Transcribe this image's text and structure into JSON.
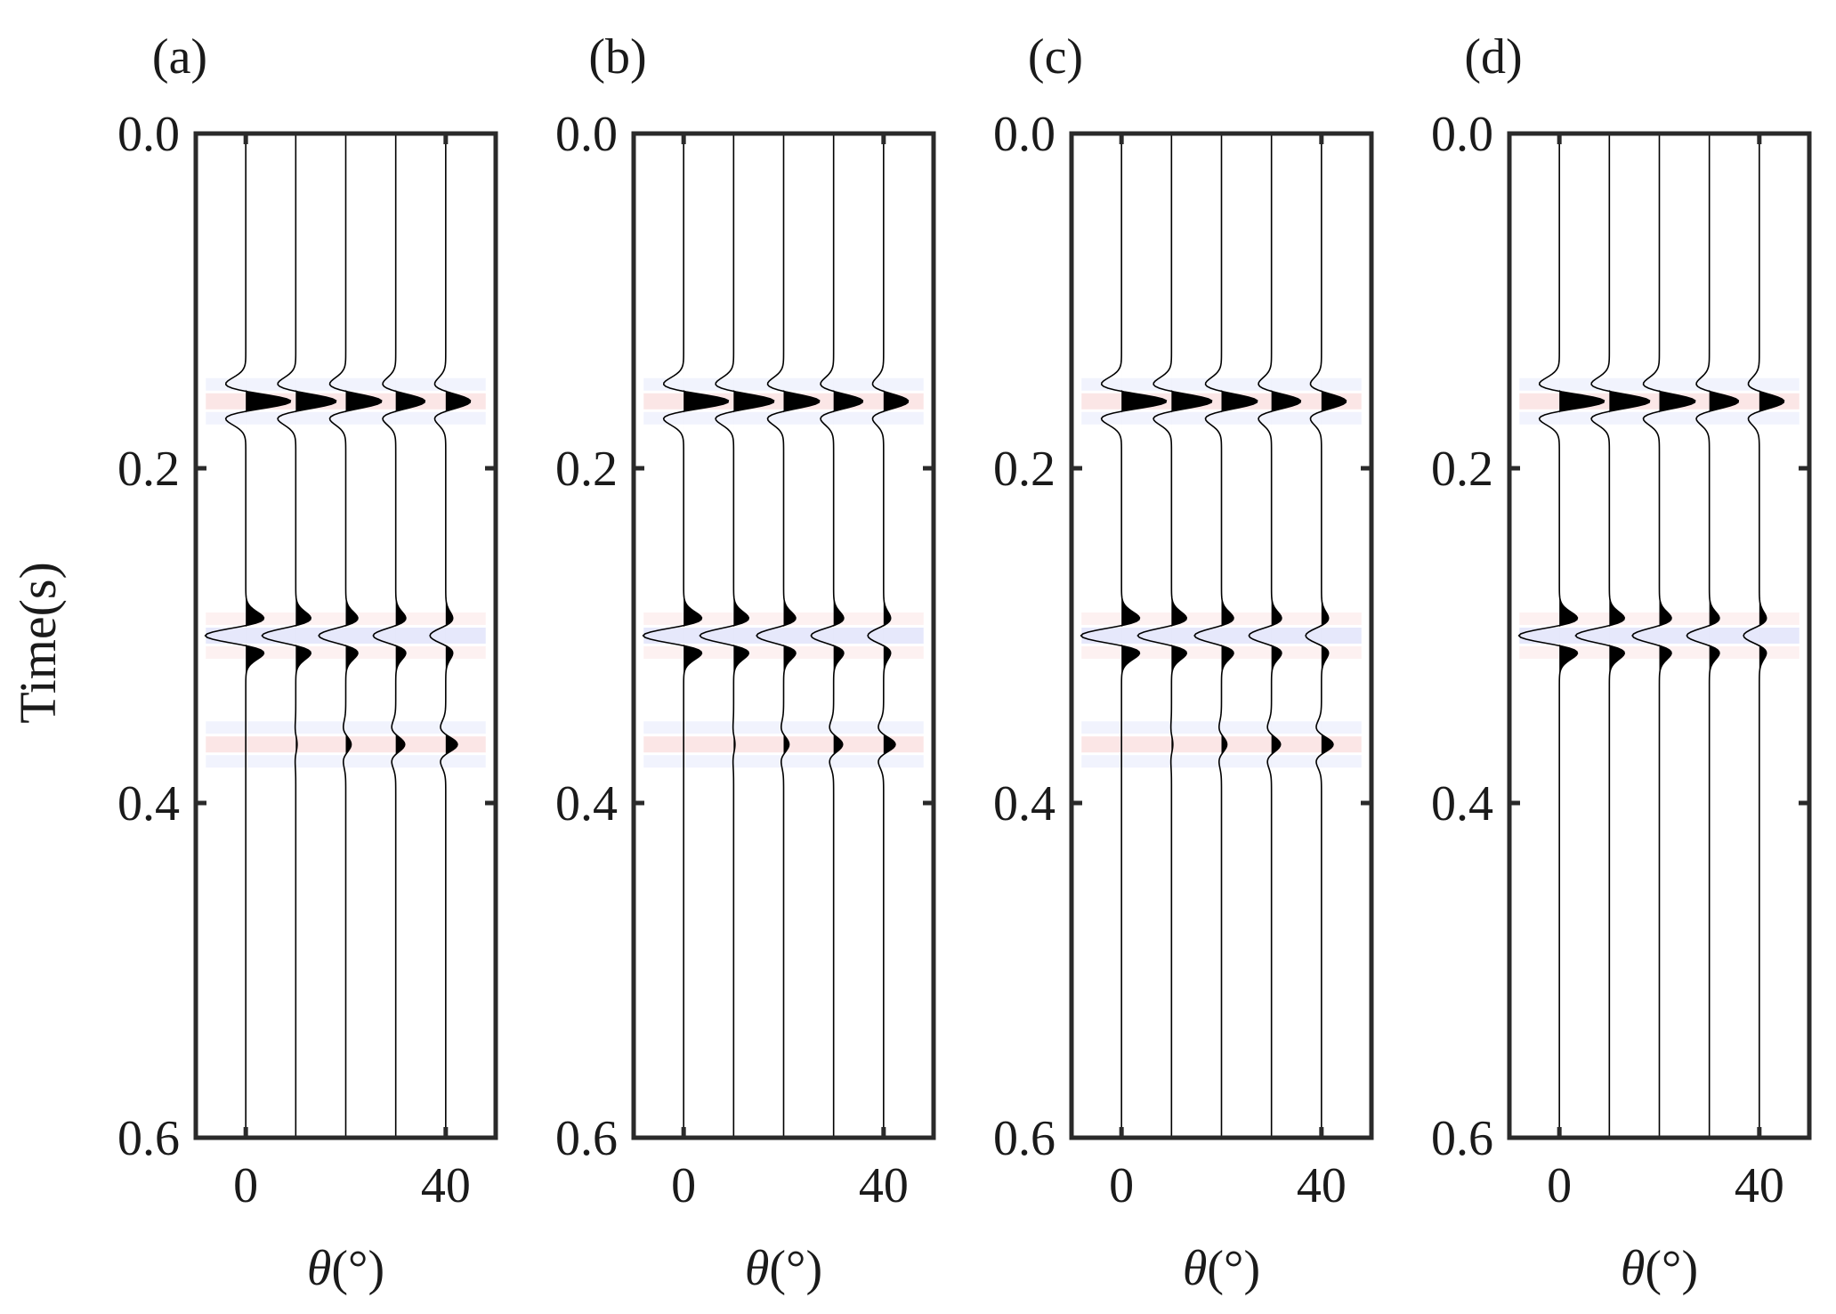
{
  "figure": {
    "ylabel": "Time(s)",
    "xlabel_symbol": "θ",
    "xlabel_unit": "(°)"
  },
  "chart_data": [
    {
      "type": "seismic-wiggle",
      "panel_label": "(a)",
      "xlabel": "θ(°)",
      "ylabel": "Time(s)",
      "x_ticks": [
        0,
        40
      ],
      "y_ticks": [
        0.0,
        0.2,
        0.4,
        0.6
      ],
      "x_ticks_label": [
        "0",
        "40"
      ],
      "y_ticks_label": [
        "0.0",
        "0.2",
        "0.4",
        "0.6"
      ],
      "xlim": [
        -10,
        50
      ],
      "ylim": [
        0.0,
        0.6
      ],
      "angles": [
        0,
        10,
        20,
        30,
        40
      ],
      "events": [
        {
          "time": 0.16,
          "amplitudes": [
            1.0,
            0.9,
            0.8,
            0.65,
            0.55
          ]
        },
        {
          "time": 0.3,
          "amplitudes": [
            -0.9,
            -0.75,
            -0.6,
            -0.5,
            -0.35
          ]
        },
        {
          "time": 0.365,
          "amplitudes": [
            0.0,
            0.03,
            0.12,
            0.2,
            0.26
          ]
        }
      ],
      "background": "#ffffff"
    },
    {
      "type": "seismic-wiggle",
      "panel_label": "(b)",
      "xlabel": "θ(°)",
      "ylabel": "",
      "x_ticks": [
        0,
        40
      ],
      "y_ticks": [
        0.0,
        0.2,
        0.4,
        0.6
      ],
      "x_ticks_label": [
        "0",
        "40"
      ],
      "y_ticks_label": [
        "0.0",
        "0.2",
        "0.4",
        "0.6"
      ],
      "xlim": [
        -10,
        50
      ],
      "ylim": [
        0.0,
        0.6
      ],
      "angles": [
        0,
        10,
        20,
        30,
        40
      ],
      "events": [
        {
          "time": 0.16,
          "amplitudes": [
            1.0,
            0.9,
            0.8,
            0.65,
            0.55
          ]
        },
        {
          "time": 0.3,
          "amplitudes": [
            -0.9,
            -0.75,
            -0.6,
            -0.5,
            -0.35
          ]
        },
        {
          "time": 0.365,
          "amplitudes": [
            0.0,
            0.03,
            0.12,
            0.2,
            0.26
          ]
        }
      ],
      "background": "#ffffff"
    },
    {
      "type": "seismic-wiggle",
      "panel_label": "(c)",
      "xlabel": "θ(°)",
      "ylabel": "",
      "x_ticks": [
        0,
        40
      ],
      "y_ticks": [
        0.0,
        0.2,
        0.4,
        0.6
      ],
      "x_ticks_label": [
        "0",
        "40"
      ],
      "y_ticks_label": [
        "0.0",
        "0.2",
        "0.4",
        "0.6"
      ],
      "xlim": [
        -10,
        50
      ],
      "ylim": [
        0.0,
        0.6
      ],
      "angles": [
        0,
        10,
        20,
        30,
        40
      ],
      "events": [
        {
          "time": 0.16,
          "amplitudes": [
            1.0,
            0.9,
            0.8,
            0.65,
            0.55
          ]
        },
        {
          "time": 0.3,
          "amplitudes": [
            -0.9,
            -0.75,
            -0.6,
            -0.5,
            -0.35
          ]
        },
        {
          "time": 0.365,
          "amplitudes": [
            0.0,
            0.03,
            0.12,
            0.2,
            0.26
          ]
        }
      ],
      "background": "#ffffff"
    },
    {
      "type": "seismic-wiggle",
      "panel_label": "(d)",
      "xlabel": "θ(°)",
      "ylabel": "",
      "x_ticks": [
        0,
        40
      ],
      "y_ticks": [
        0.0,
        0.2,
        0.4,
        0.6
      ],
      "x_ticks_label": [
        "0",
        "40"
      ],
      "y_ticks_label": [
        "0.0",
        "0.2",
        "0.4",
        "0.6"
      ],
      "xlim": [
        -10,
        50
      ],
      "ylim": [
        0.0,
        0.6
      ],
      "angles": [
        0,
        10,
        20,
        30,
        40
      ],
      "events": [
        {
          "time": 0.16,
          "amplitudes": [
            1.0,
            0.9,
            0.8,
            0.65,
            0.55
          ]
        },
        {
          "time": 0.3,
          "amplitudes": [
            -0.9,
            -0.75,
            -0.6,
            -0.5,
            -0.35
          ]
        }
      ],
      "background": "#ffffff"
    }
  ],
  "colors": {
    "axis": "#2a2a2a",
    "trace": "#000000",
    "fill": "#000000",
    "positive_shade": "#e23b3b",
    "negative_shade": "#3b4ee2"
  }
}
